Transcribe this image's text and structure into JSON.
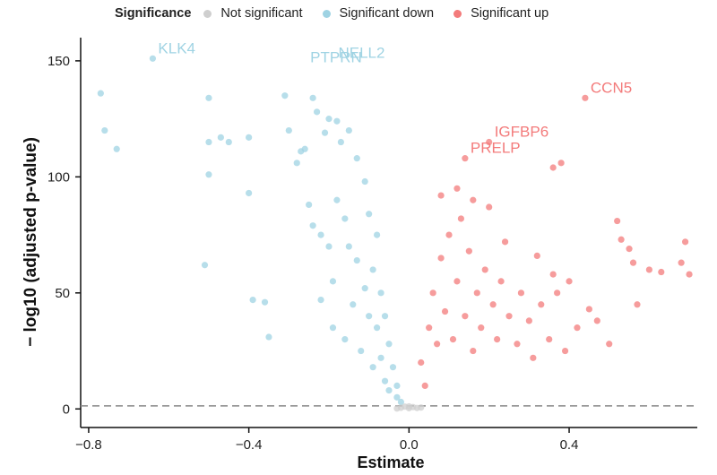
{
  "legend": {
    "title": "Significance",
    "items": [
      {
        "label": "Not significant",
        "color": "#cfcfcf"
      },
      {
        "label": "Significant down",
        "color": "#9fd3e3"
      },
      {
        "label": "Significant up",
        "color": "#f37b7b"
      }
    ]
  },
  "chart_data": {
    "type": "scatter",
    "title": "",
    "xlabel": "Estimate",
    "ylabel": "− log10 (adjusted p-value)",
    "xlim": [
      -0.82,
      0.72
    ],
    "ylim": [
      -8,
      160
    ],
    "xticks": [
      -0.8,
      -0.4,
      0.0,
      0.4
    ],
    "xtick_labels": [
      "−0.8",
      "−0.4",
      "0.0",
      "0.4"
    ],
    "yticks": [
      0,
      50,
      100,
      150
    ],
    "ytick_labels": [
      "0",
      "50",
      "100",
      "150"
    ],
    "threshold_y": 1.3,
    "grid": false,
    "series": [
      {
        "name": "Significant down",
        "color": "#9fd3e3",
        "points": [
          [
            -0.77,
            136
          ],
          [
            -0.76,
            120
          ],
          [
            -0.73,
            112
          ],
          [
            -0.64,
            151
          ],
          [
            -0.5,
            134
          ],
          [
            -0.5,
            115
          ],
          [
            -0.5,
            101
          ],
          [
            -0.51,
            62
          ],
          [
            -0.47,
            117
          ],
          [
            -0.45,
            115
          ],
          [
            -0.4,
            117
          ],
          [
            -0.4,
            93
          ],
          [
            -0.39,
            47
          ],
          [
            -0.36,
            46
          ],
          [
            -0.35,
            31
          ],
          [
            -0.31,
            135
          ],
          [
            -0.3,
            120
          ],
          [
            -0.28,
            106
          ],
          [
            -0.27,
            111
          ],
          [
            -0.26,
            112
          ],
          [
            -0.25,
            88
          ],
          [
            -0.24,
            134
          ],
          [
            -0.24,
            79
          ],
          [
            -0.23,
            128
          ],
          [
            -0.22,
            75
          ],
          [
            -0.22,
            47
          ],
          [
            -0.21,
            119
          ],
          [
            -0.2,
            125
          ],
          [
            -0.2,
            70
          ],
          [
            -0.19,
            55
          ],
          [
            -0.19,
            35
          ],
          [
            -0.18,
            124
          ],
          [
            -0.18,
            90
          ],
          [
            -0.17,
            115
          ],
          [
            -0.16,
            82
          ],
          [
            -0.16,
            30
          ],
          [
            -0.15,
            120
          ],
          [
            -0.15,
            70
          ],
          [
            -0.14,
            45
          ],
          [
            -0.13,
            108
          ],
          [
            -0.13,
            64
          ],
          [
            -0.12,
            25
          ],
          [
            -0.11,
            98
          ],
          [
            -0.11,
            52
          ],
          [
            -0.1,
            84
          ],
          [
            -0.1,
            40
          ],
          [
            -0.09,
            60
          ],
          [
            -0.09,
            18
          ],
          [
            -0.08,
            75
          ],
          [
            -0.08,
            35
          ],
          [
            -0.07,
            50
          ],
          [
            -0.07,
            22
          ],
          [
            -0.06,
            40
          ],
          [
            -0.06,
            12
          ],
          [
            -0.05,
            28
          ],
          [
            -0.05,
            8
          ],
          [
            -0.04,
            18
          ],
          [
            -0.03,
            10
          ],
          [
            -0.03,
            5
          ],
          [
            -0.02,
            3
          ]
        ]
      },
      {
        "name": "Significant up",
        "color": "#f37b7b",
        "points": [
          [
            0.44,
            134
          ],
          [
            0.38,
            106
          ],
          [
            0.36,
            104
          ],
          [
            0.14,
            108
          ],
          [
            0.2,
            115
          ],
          [
            0.08,
            92
          ],
          [
            0.12,
            95
          ],
          [
            0.16,
            90
          ],
          [
            0.2,
            87
          ],
          [
            0.24,
            72
          ],
          [
            0.32,
            66
          ],
          [
            0.36,
            58
          ],
          [
            0.4,
            55
          ],
          [
            0.45,
            43
          ],
          [
            0.52,
            81
          ],
          [
            0.53,
            73
          ],
          [
            0.55,
            69
          ],
          [
            0.56,
            63
          ],
          [
            0.57,
            45
          ],
          [
            0.6,
            60
          ],
          [
            0.63,
            59
          ],
          [
            0.68,
            63
          ],
          [
            0.69,
            72
          ],
          [
            0.7,
            58
          ],
          [
            0.03,
            20
          ],
          [
            0.04,
            10
          ],
          [
            0.05,
            35
          ],
          [
            0.06,
            50
          ],
          [
            0.07,
            28
          ],
          [
            0.08,
            65
          ],
          [
            0.09,
            42
          ],
          [
            0.1,
            75
          ],
          [
            0.11,
            30
          ],
          [
            0.12,
            55
          ],
          [
            0.13,
            82
          ],
          [
            0.14,
            40
          ],
          [
            0.15,
            68
          ],
          [
            0.16,
            25
          ],
          [
            0.17,
            50
          ],
          [
            0.18,
            35
          ],
          [
            0.19,
            60
          ],
          [
            0.21,
            45
          ],
          [
            0.22,
            30
          ],
          [
            0.23,
            55
          ],
          [
            0.25,
            40
          ],
          [
            0.27,
            28
          ],
          [
            0.28,
            50
          ],
          [
            0.3,
            38
          ],
          [
            0.31,
            22
          ],
          [
            0.33,
            45
          ],
          [
            0.35,
            30
          ],
          [
            0.37,
            50
          ],
          [
            0.39,
            25
          ],
          [
            0.42,
            35
          ],
          [
            0.47,
            38
          ],
          [
            0.5,
            28
          ]
        ]
      },
      {
        "name": "Not significant",
        "color": "#cfcfcf",
        "points": [
          [
            -0.02,
            0.5
          ],
          [
            -0.01,
            1
          ],
          [
            0.0,
            0.3
          ],
          [
            0.01,
            0.8
          ],
          [
            0.02,
            0.4
          ],
          [
            -0.03,
            0.2
          ],
          [
            0.03,
            0.6
          ],
          [
            0.0,
            1.1
          ]
        ]
      }
    ],
    "annotations": [
      {
        "text": "KLK4",
        "x": -0.64,
        "y": 151,
        "color": "#9fd3e3"
      },
      {
        "text": "PTPRN",
        "x": -0.26,
        "y": 147,
        "color": "#9fd3e3"
      },
      {
        "text": "NELL2",
        "x": -0.19,
        "y": 149,
        "color": "#9fd3e3"
      },
      {
        "text": "PRELP",
        "x": 0.14,
        "y": 108,
        "color": "#f37b7b"
      },
      {
        "text": "IGFBP6",
        "x": 0.2,
        "y": 115,
        "color": "#f37b7b"
      },
      {
        "text": "CCN5",
        "x": 0.44,
        "y": 134,
        "color": "#f37b7b"
      }
    ]
  }
}
